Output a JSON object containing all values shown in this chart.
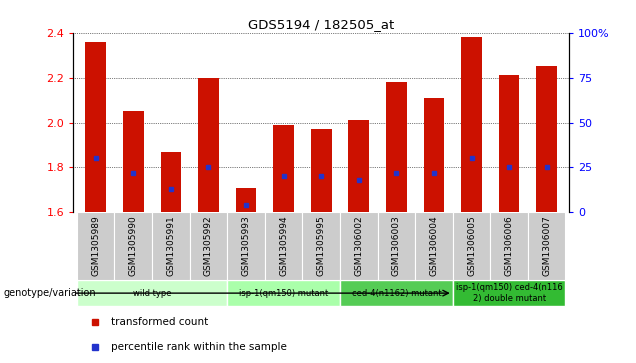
{
  "title": "GDS5194 / 182505_at",
  "samples": [
    "GSM1305989",
    "GSM1305990",
    "GSM1305991",
    "GSM1305992",
    "GSM1305993",
    "GSM1305994",
    "GSM1305995",
    "GSM1306002",
    "GSM1306003",
    "GSM1306004",
    "GSM1306005",
    "GSM1306006",
    "GSM1306007"
  ],
  "transformed_counts": [
    2.36,
    2.05,
    1.87,
    2.2,
    1.71,
    1.99,
    1.97,
    2.01,
    2.18,
    2.11,
    2.38,
    2.21,
    2.25
  ],
  "percentile_ranks": [
    30,
    22,
    13,
    25,
    4,
    20,
    20,
    18,
    22,
    22,
    30,
    25,
    25
  ],
  "ylim": [
    1.6,
    2.4
  ],
  "y2lim": [
    0,
    100
  ],
  "yticks": [
    1.6,
    1.8,
    2.0,
    2.2,
    2.4
  ],
  "y2ticks": [
    0,
    25,
    50,
    75,
    100
  ],
  "y2ticklabels": [
    "0",
    "25",
    "50",
    "75",
    "100%"
  ],
  "bar_color": "#cc1100",
  "blue_color": "#2233cc",
  "groups": [
    {
      "label": "wild type",
      "indices": [
        0,
        1,
        2,
        3
      ],
      "color": "#ccffcc"
    },
    {
      "label": "isp-1(qm150) mutant",
      "indices": [
        4,
        5,
        6
      ],
      "color": "#aaffaa"
    },
    {
      "label": "ced-4(n1162) mutant",
      "indices": [
        7,
        8,
        9
      ],
      "color": "#55cc55"
    },
    {
      "label": "isp-1(qm150) ced-4(n116\n2) double mutant",
      "indices": [
        10,
        11,
        12
      ],
      "color": "#33bb33"
    }
  ],
  "genotype_label": "genotype/variation",
  "legend_items": [
    {
      "label": "transformed count",
      "color": "#cc1100"
    },
    {
      "label": "percentile rank within the sample",
      "color": "#2233cc"
    }
  ],
  "bar_width": 0.55,
  "ybase": 1.6,
  "sample_cell_color": "#cccccc"
}
